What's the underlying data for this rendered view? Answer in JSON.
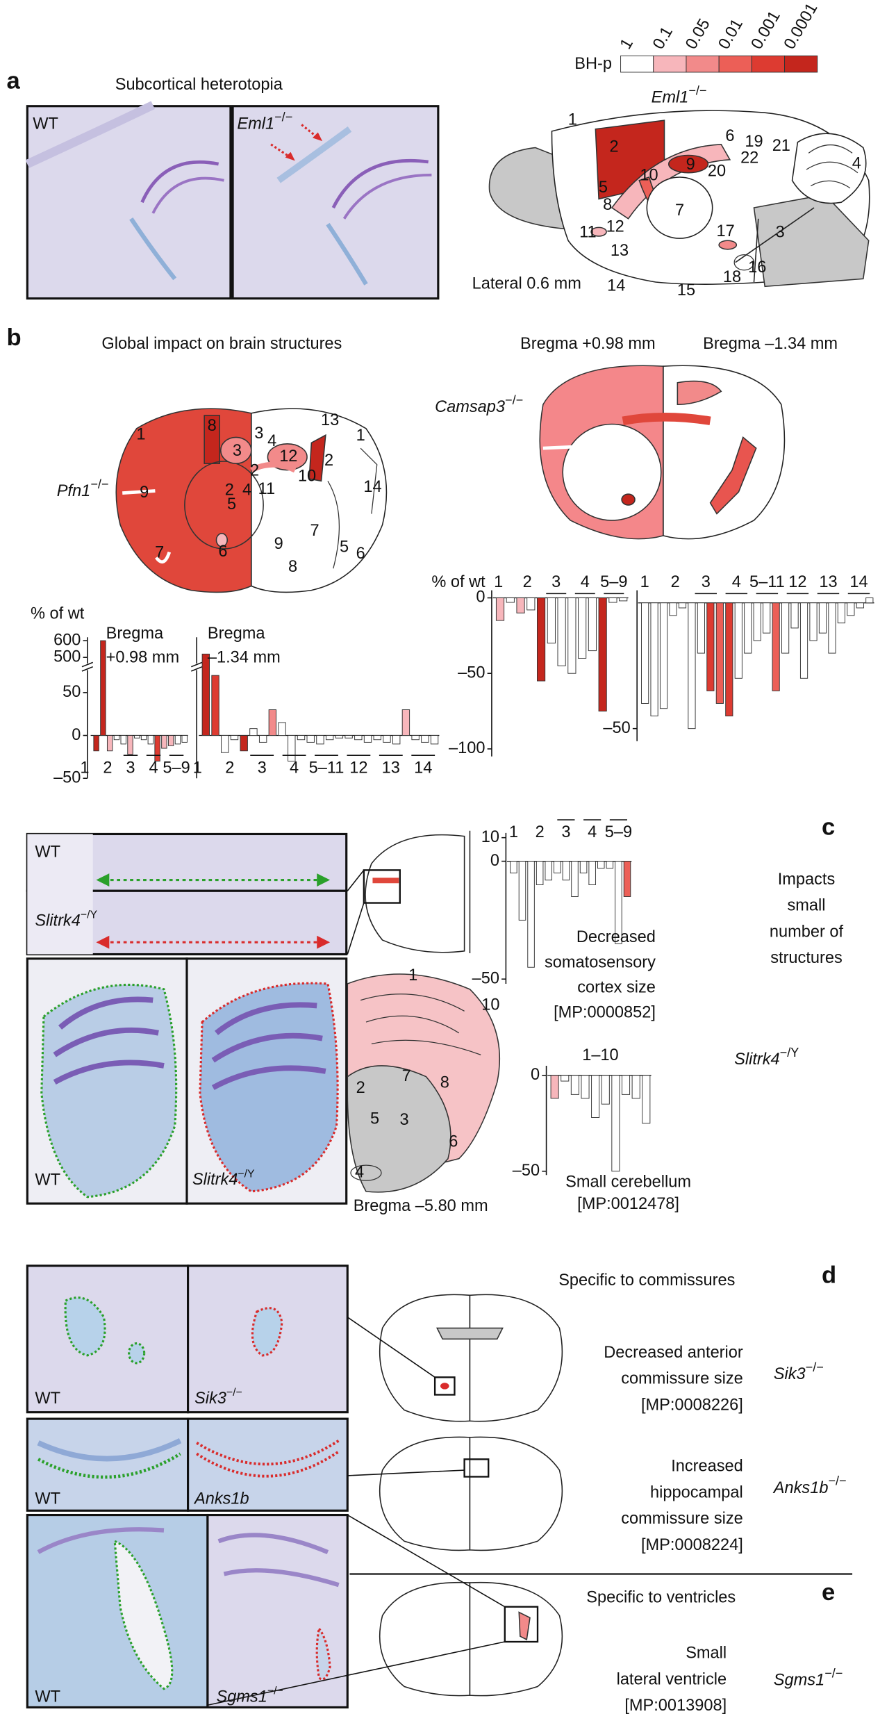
{
  "colorbar": {
    "label": "BH-p",
    "ticks": [
      "1",
      "0.1",
      "0.05",
      "0.01",
      "0.001",
      "0.0001"
    ],
    "colors": [
      "#ffffff",
      "#f7b6bb",
      "#f28a8a",
      "#ec5f57",
      "#dd3b31",
      "#c4261d"
    ]
  },
  "a": {
    "letter": "a",
    "title": "Subcortical heterotopia",
    "wt": "WT",
    "mutant": {
      "gene": "Eml1",
      "genotype": "−/−"
    },
    "diagram_gene": {
      "gene": "Eml1",
      "genotype": "−/−"
    },
    "section": "Lateral 0.6 mm",
    "regions": [
      "1",
      "2",
      "3",
      "4",
      "5",
      "6",
      "7",
      "8",
      "9",
      "10",
      "11",
      "12",
      "13",
      "14",
      "15",
      "16",
      "17",
      "18",
      "19",
      "20",
      "21",
      "22"
    ]
  },
  "b": {
    "letter": "b",
    "title": "Global impact on brain structures",
    "section_left": "Bregma +0.98 mm",
    "section_right": "Bregma –1.34 mm",
    "pfn1": {
      "gene": "Pfn1",
      "genotype": "−/−"
    },
    "camsap3": {
      "gene": "Camsap3",
      "genotype": "−/−"
    },
    "regions": [
      "1",
      "8",
      "3",
      "9",
      "5",
      "2",
      "4",
      "6",
      "7",
      "13",
      "3",
      "4",
      "12",
      "2",
      "11",
      "10",
      "2",
      "1",
      "14",
      "9",
      "7",
      "5",
      "6",
      "8"
    ],
    "left_chart": {
      "axis_label": "% of wt",
      "ylim": [
        -50,
        620
      ],
      "axis_break": true,
      "yticks": [
        {
          "value": -50,
          "label": "–50"
        },
        0,
        50,
        500,
        600
      ],
      "panels": [
        {
          "title": [
            "Bregma",
            "+0.98 mm"
          ],
          "group_labels": [
            "1",
            "2",
            "3",
            "4",
            "5–9"
          ],
          "values": [
            -18,
            600,
            -18,
            -5,
            -10,
            -22,
            -3,
            -5,
            -10,
            -30,
            -15,
            -12,
            -10,
            -8
          ],
          "colors": [
            "#c4261d",
            "#c4261d",
            "#f7b6bb",
            "#ffffff",
            "#ffffff",
            "#f7b6bb",
            "#ffffff",
            "#ffffff",
            "#ffffff",
            "#dd3b31",
            "#f7b6bb",
            "#f7b6bb",
            "#ffffff",
            "#ffffff"
          ]
        },
        {
          "title": [
            "Bregma",
            "–1.34 mm"
          ],
          "group_labels": [
            "1",
            "2",
            "3",
            "4",
            "5–11",
            "12",
            "13",
            "14"
          ],
          "values": [
            520,
            70,
            -20,
            -5,
            -18,
            8,
            -8,
            30,
            15,
            -30,
            -5,
            -8,
            -10,
            -5,
            -3,
            -3,
            -5,
            -8,
            -5,
            -8,
            -10,
            30,
            -5,
            -8,
            -10
          ],
          "colors": [
            "#c4261d",
            "#dd3b31",
            "#ffffff",
            "#ffffff",
            "#c4261d",
            "#ffffff",
            "#ffffff",
            "#f28a8a",
            "#ffffff",
            "#ffffff",
            "#ffffff",
            "#ffffff",
            "#ffffff",
            "#ffffff",
            "#ffffff",
            "#ffffff",
            "#ffffff",
            "#ffffff",
            "#ffffff",
            "#ffffff",
            "#ffffff",
            "#f7b6bb",
            "#ffffff",
            "#ffffff",
            "#ffffff"
          ]
        }
      ]
    },
    "right_charts": [
      {
        "axis_label": "% of wt",
        "ylim": [
          -105,
          5
        ],
        "yticks": [
          {
            "value": -100,
            "label": "–100"
          },
          {
            "value": -50,
            "label": "–50"
          },
          0
        ],
        "group_labels": [
          "1",
          "2",
          "3",
          "4",
          "5–9"
        ],
        "values": [
          -15,
          -3,
          -10,
          -8,
          -55,
          -30,
          -45,
          -50,
          -40,
          -35,
          -75,
          -3,
          -2
        ],
        "colors": [
          "#f7b6bb",
          "#ffffff",
          "#f7b6bb",
          "#ffffff",
          "#c4261d",
          "#ffffff",
          "#ffffff",
          "#ffffff",
          "#ffffff",
          "#ffffff",
          "#c4261d",
          "#ffffff",
          "#ffffff"
        ]
      },
      {
        "ylim": [
          -55,
          5
        ],
        "yticks": [
          {
            "value": -50,
            "label": "–50"
          }
        ],
        "group_labels": [
          "1",
          "2",
          "3",
          "4",
          "5–11",
          "12",
          "13",
          "14"
        ],
        "values": [
          -40,
          -45,
          -42,
          -5,
          -2,
          -50,
          -20,
          -35,
          -40,
          -45,
          -30,
          -20,
          -15,
          -12,
          -35,
          -20,
          -10,
          -30,
          -15,
          -12,
          -20,
          -8,
          -5,
          -2,
          2
        ],
        "colors": [
          "#ffffff",
          "#ffffff",
          "#ffffff",
          "#ffffff",
          "#ffffff",
          "#ffffff",
          "#ffffff",
          "#dd3b31",
          "#ec5f57",
          "#dd3b31",
          "#ffffff",
          "#ffffff",
          "#ffffff",
          "#ffffff",
          "#ec5f57",
          "#ffffff",
          "#ffffff",
          "#ffffff",
          "#ffffff",
          "#ffffff",
          "#ffffff",
          "#ffffff",
          "#ffffff",
          "#ffffff",
          "#ffffff"
        ]
      }
    ]
  },
  "c": {
    "letter": "c",
    "summary": [
      "Impacts",
      "small",
      "number of",
      "structures"
    ],
    "wt_strip": "WT",
    "mutant_strip": {
      "gene": "Slitrk4",
      "genotype": "−/Y"
    },
    "wt_cerebellum": "WT",
    "mutant_cerebellum": {
      "gene": "Slitrk4",
      "genotype": "−/Y"
    },
    "gene": {
      "gene": "Slitrk4",
      "genotype": "−/Y"
    },
    "section": "Bregma –5.80 mm",
    "regions": [
      "1",
      "10",
      "2",
      "7",
      "8",
      "5",
      "3",
      "6",
      "4"
    ],
    "cortex_chart": {
      "phenotype": [
        "Decreased",
        "somatosensory",
        "cortex size",
        "[MP:0000852]"
      ],
      "ylim": [
        -52,
        12
      ],
      "yticks": [
        {
          "value": -50,
          "label": "–50"
        },
        0,
        10
      ],
      "group_labels": [
        "1",
        "2",
        "3",
        "4",
        "5–9"
      ],
      "values": [
        -5,
        -25,
        -45,
        -10,
        -8,
        -5,
        -8,
        -15,
        -5,
        -10,
        -3,
        -3,
        -35,
        -15
      ],
      "colors": [
        "#ffffff",
        "#ffffff",
        "#ffffff",
        "#ffffff",
        "#ffffff",
        "#ffffff",
        "#ffffff",
        "#ffffff",
        "#ffffff",
        "#ffffff",
        "#ffffff",
        "#ffffff",
        "#ffffff",
        "#ec5f57"
      ]
    },
    "cerebellum_chart": {
      "phenotype": [
        "Small cerebellum",
        "[MP:0012478]"
      ],
      "ylim": [
        -52,
        5
      ],
      "yticks": [
        {
          "value": -50,
          "label": "–50"
        },
        0
      ],
      "group_labels": [
        "1–10"
      ],
      "values": [
        -12,
        -3,
        -10,
        -12,
        -22,
        -15,
        -50,
        -10,
        -12,
        -25
      ],
      "colors": [
        "#f7b6bb",
        "#ffffff",
        "#ffffff",
        "#ffffff",
        "#ffffff",
        "#ffffff",
        "#ffffff",
        "#ffffff",
        "#ffffff",
        "#ffffff"
      ]
    }
  },
  "d": {
    "letter": "d",
    "title": "Specific to commissures",
    "anterior": {
      "phenotype": [
        "Decreased anterior",
        "commissure size",
        "[MP:0008226]"
      ],
      "gene": {
        "gene": "Sik3",
        "genotype": "−/−"
      },
      "wt": "WT",
      "mutant": {
        "gene": "Sik3",
        "genotype": "−/−"
      }
    },
    "hippocampal": {
      "phenotype": [
        "Increased",
        "hippocampal",
        "commissure size",
        "[MP:0008224]"
      ],
      "gene": {
        "gene": "Anks1b",
        "genotype": "−/−"
      },
      "wt": "WT",
      "mutant": {
        "gene": "Anks1b",
        "genotype": ""
      }
    }
  },
  "e": {
    "letter": "e",
    "title": "Specific to ventricles",
    "phenotype": [
      "Small",
      "lateral ventricle",
      "[MP:0013908]"
    ],
    "gene": {
      "gene": "Sgms1",
      "genotype": "−/−"
    },
    "wt": "WT",
    "mutant": {
      "gene": "Sgms1",
      "genotype": "−/−"
    }
  }
}
